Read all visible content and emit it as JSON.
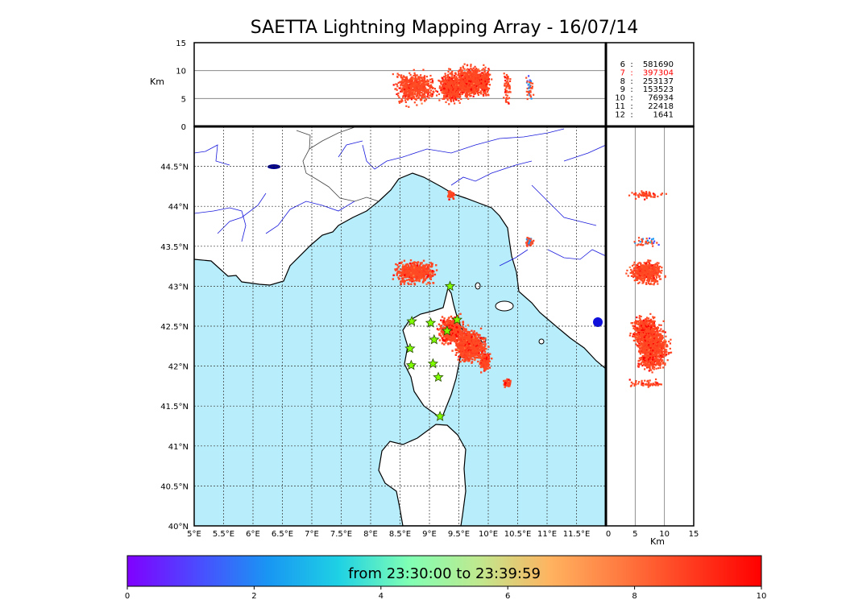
{
  "title": "SAETTA Lightning Mapping Array - 16/07/14",
  "colors": {
    "sea": "#b8eefb",
    "land": "#ffffff",
    "river": "#1a1adc",
    "grid": "#333333",
    "frame": "#000000",
    "station": "#7fff00",
    "station_edge": "#2a4d00"
  },
  "map": {
    "lon_range": [
      5,
      12
    ],
    "lat_range": [
      40,
      45
    ],
    "lon_ticks": [
      "5°E",
      "5.5°E",
      "6°E",
      "6.5°E",
      "7°E",
      "7.5°E",
      "8°E",
      "8.5°E",
      "9°E",
      "9.5°E",
      "10°E",
      "10.5°E",
      "11°E",
      "11.5°E"
    ],
    "lat_ticks": [
      "40°N",
      "40.5°N",
      "41°N",
      "41.5°N",
      "42°N",
      "42.5°N",
      "43°N",
      "43.5°N",
      "44°N",
      "44.5°N"
    ],
    "stations": [
      {
        "lon": 9.35,
        "lat": 43.0
      },
      {
        "lon": 8.7,
        "lat": 42.56
      },
      {
        "lon": 9.02,
        "lat": 42.54
      },
      {
        "lon": 9.47,
        "lat": 42.58
      },
      {
        "lon": 9.3,
        "lat": 42.44
      },
      {
        "lon": 9.08,
        "lat": 42.33
      },
      {
        "lon": 8.67,
        "lat": 42.22
      },
      {
        "lon": 8.69,
        "lat": 42.01
      },
      {
        "lon": 9.06,
        "lat": 42.03
      },
      {
        "lon": 9.15,
        "lat": 41.86
      },
      {
        "lon": 9.18,
        "lat": 41.37
      }
    ],
    "icon_marker": "star-icon"
  },
  "height_panel": {
    "ylabel": "Km",
    "y_ticks": [
      "0",
      "5",
      "10",
      "15"
    ],
    "y_range": [
      0,
      15
    ]
  },
  "side_panel": {
    "xlabel": "Km",
    "x_ticks": [
      "0",
      "5",
      "10",
      "15"
    ],
    "x_range": [
      0,
      15
    ]
  },
  "counts": [
    {
      "label": "6",
      "sep": ":",
      "value": "581690",
      "highlight": false
    },
    {
      "label": "7",
      "sep": ":",
      "value": "397304",
      "highlight": true
    },
    {
      "label": "8",
      "sep": ":",
      "value": "253137",
      "highlight": false
    },
    {
      "label": "9",
      "sep": ":",
      "value": "153523",
      "highlight": false
    },
    {
      "label": "10",
      "sep": ":",
      "value": "76934",
      "highlight": false
    },
    {
      "label": "11",
      "sep": ":",
      "value": "22418",
      "highlight": false
    },
    {
      "label": "12",
      "sep": ":",
      "value": "1641",
      "highlight": false
    }
  ],
  "highlight_color": "#ff0000",
  "colorbar": {
    "label": "from 23:30:00 to 23:39:59",
    "ticks": [
      "0",
      "2",
      "4",
      "6",
      "8",
      "10"
    ],
    "range": [
      0,
      10
    ],
    "colors": [
      "#8000ff",
      "#4b4bff",
      "#1996f3",
      "#1ed1e4",
      "#80ffb4",
      "#c0e88e",
      "#ffb360",
      "#ff7a40",
      "#ff3b1f",
      "#ff0000"
    ]
  },
  "chart_data": {
    "type": "scatter",
    "title": "SAETTA Lightning Mapping Array - 16/07/14",
    "xlabel": "",
    "ylabel": "",
    "xlim": [
      5,
      12
    ],
    "ylim": [
      40,
      45
    ],
    "series": [
      {
        "time_min": 9.0,
        "lon": 8.76,
        "lat": 43.17,
        "alt_km": 7,
        "spread": [
          0.3,
          0.12
        ],
        "n": 600
      },
      {
        "time_min": 9.3,
        "lon": 9.38,
        "lat": 42.45,
        "alt_km": 7,
        "spread": [
          0.18,
          0.14
        ],
        "n": 550
      },
      {
        "time_min": 9.1,
        "lon": 9.7,
        "lat": 42.25,
        "alt_km": 8,
        "spread": [
          0.22,
          0.16
        ],
        "n": 900
      },
      {
        "time_min": 9.6,
        "lon": 9.95,
        "lat": 42.05,
        "alt_km": 8,
        "spread": [
          0.08,
          0.1
        ],
        "n": 180
      },
      {
        "time_min": 9.8,
        "lon": 10.33,
        "lat": 41.78,
        "alt_km": 7,
        "spread": [
          0.06,
          0.04
        ],
        "n": 60
      },
      {
        "time_min": 9.6,
        "lon": 9.36,
        "lat": 44.14,
        "alt_km": 7,
        "spread": [
          0.05,
          0.05
        ],
        "n": 60
      },
      {
        "time_min": 2.2,
        "lon": 10.7,
        "lat": 43.55,
        "alt_km": 7,
        "spread": [
          0.06,
          0.05
        ],
        "n": 40
      }
    ]
  }
}
